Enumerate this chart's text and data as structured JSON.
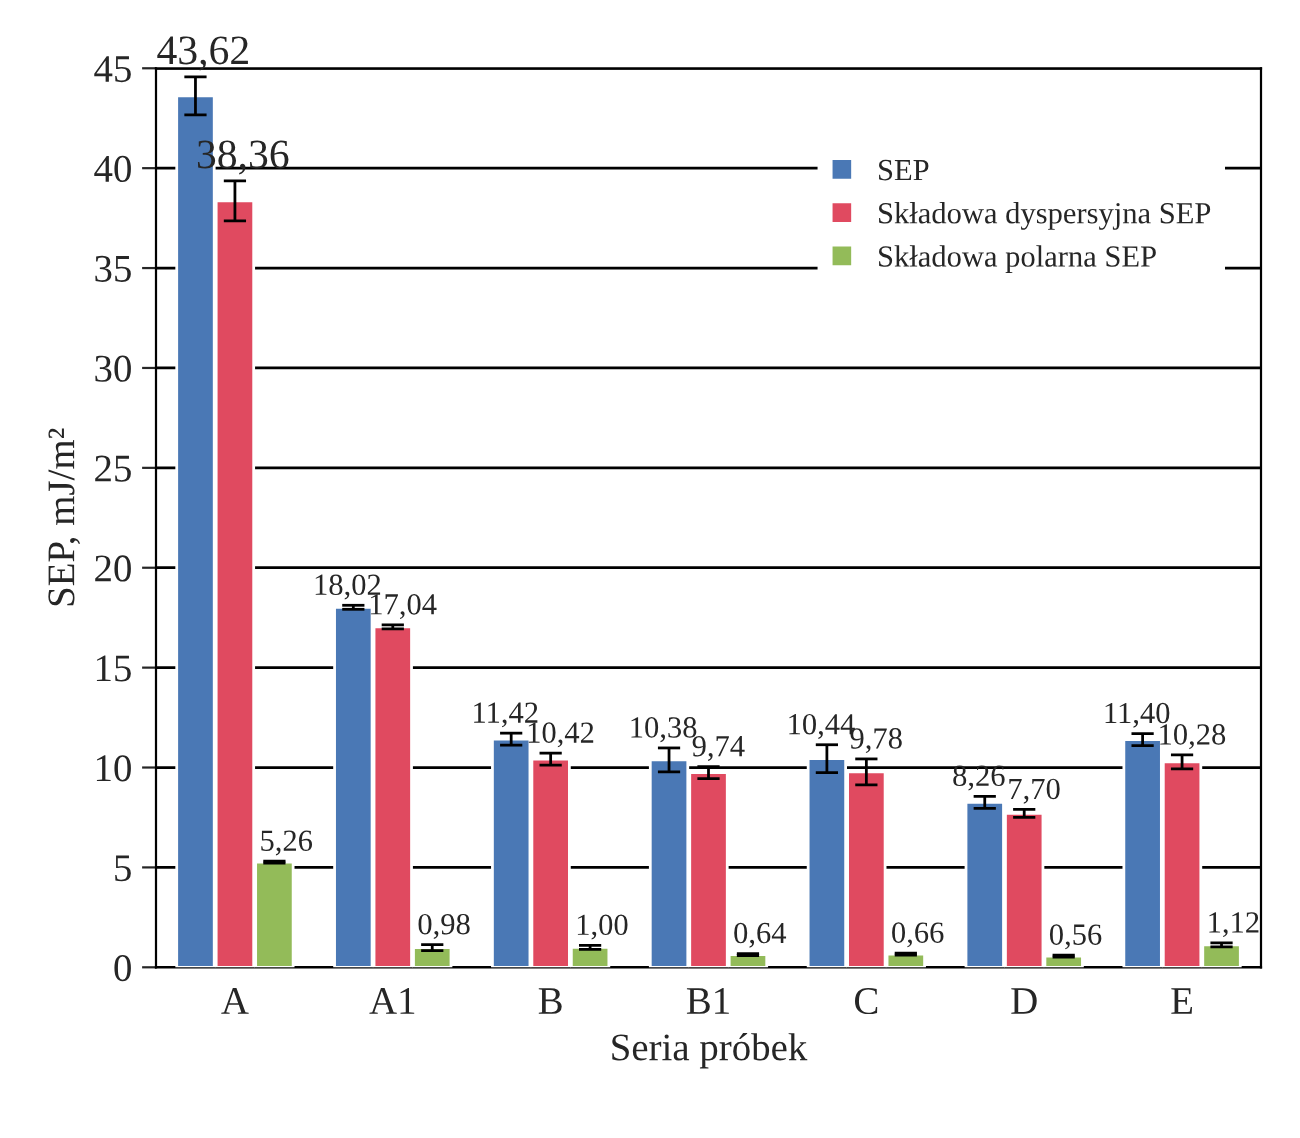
{
  "chart_data": {
    "type": "bar",
    "xlabel": "Seria próbek",
    "ylabel": "SEP, mJ/m²",
    "categories": [
      "A",
      "A1",
      "B",
      "B1",
      "C",
      "D",
      "E"
    ],
    "series": [
      {
        "name": "SEP",
        "color": "#4a78b5",
        "values": [
          43.62,
          18.02,
          11.42,
          10.38,
          10.44,
          8.26,
          11.4
        ],
        "errors": [
          0.95,
          0.1,
          0.3,
          0.6,
          0.7,
          0.3,
          0.3
        ],
        "value_labels": [
          "43,62",
          "18,02",
          "11,42",
          "10,38",
          "10,44",
          "8,26",
          "11,40"
        ]
      },
      {
        "name": "Składowa dyspersyjna SEP",
        "color": "#e04a60",
        "values": [
          38.36,
          17.04,
          10.42,
          9.74,
          9.78,
          7.7,
          10.28
        ],
        "errors": [
          1.0,
          0.1,
          0.3,
          0.3,
          0.65,
          0.2,
          0.35
        ],
        "value_labels": [
          "38,36",
          "17,04",
          "10,42",
          "9,74",
          "9,78",
          "7,70",
          "10,28"
        ]
      },
      {
        "name": "Składowa polarna SEP",
        "color": "#93bb59",
        "values": [
          5.26,
          0.98,
          1.0,
          0.64,
          0.66,
          0.56,
          1.12
        ],
        "errors": [
          0.05,
          0.15,
          0.1,
          0.05,
          0.05,
          0.05,
          0.1
        ],
        "value_labels": [
          "5,26",
          "0,98",
          "1,00",
          "0,64",
          "0,66",
          "0,56",
          "1,12"
        ]
      }
    ],
    "ylim": [
      0,
      45
    ],
    "yticks": [
      0,
      5,
      10,
      15,
      20,
      25,
      30,
      35,
      40,
      45
    ],
    "grid": "y",
    "legend": "top right"
  }
}
